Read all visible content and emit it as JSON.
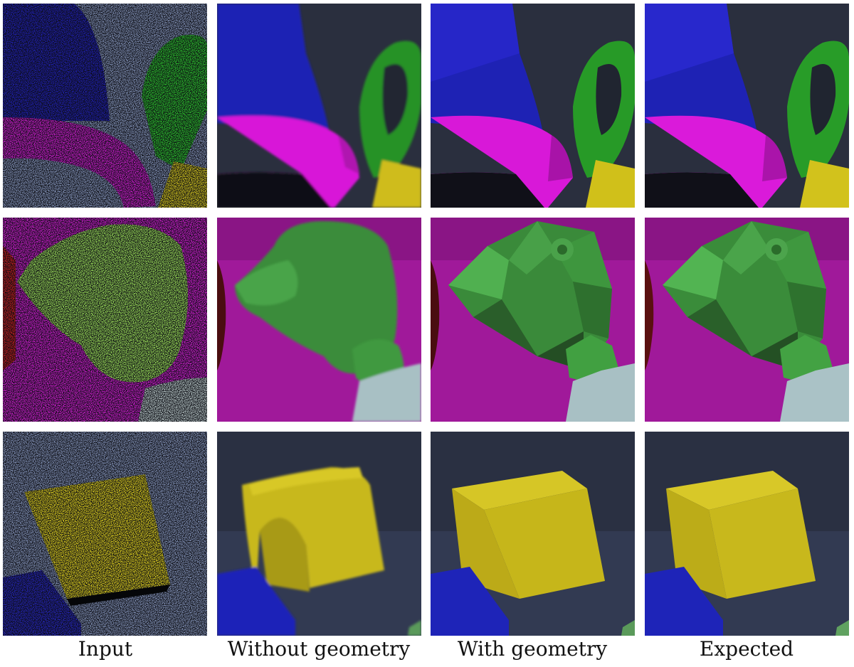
{
  "figure": {
    "columns": [
      "Input",
      "Without geometry",
      "With geometry",
      "Expected"
    ],
    "rows": [
      {
        "scene": "blue-cone-magenta-ring-green-torus-yellow-cube"
      },
      {
        "scene": "green-monkey-head-on-magenta-floor"
      },
      {
        "scene": "yellow-cube-dark-background"
      }
    ]
  },
  "colors": {
    "background": "#262b3a",
    "blue": "#1f1fa8",
    "magenta": "#e01ce0",
    "green": "#2c9a2c",
    "yellow": "#d4c21c",
    "floor": "#a0199a",
    "grey_blue": "#8aa0ad"
  }
}
